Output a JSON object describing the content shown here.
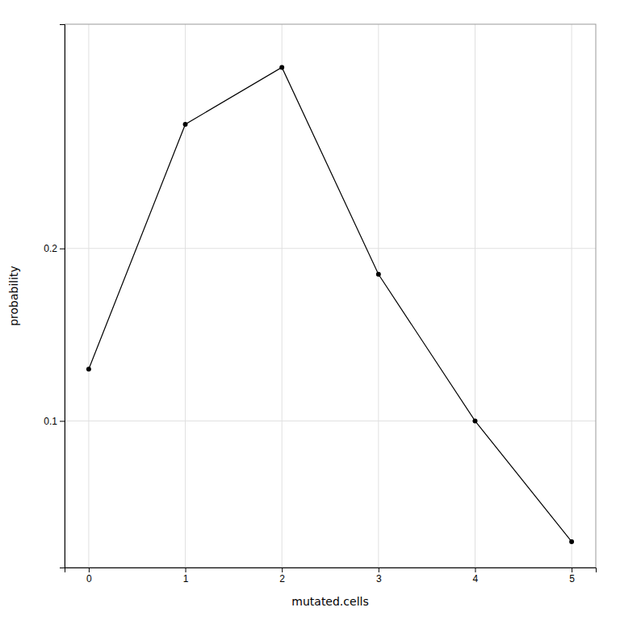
{
  "chart_data": {
    "type": "line",
    "x": [
      0,
      1,
      2,
      3,
      4,
      5
    ],
    "values": [
      0.13,
      0.272,
      0.305,
      0.185,
      0.1,
      0.03
    ],
    "xlabel": "mutated.cells",
    "ylabel": "probability",
    "color": "#000000",
    "marker": "circle",
    "xlim": [
      -0.25,
      5.25
    ],
    "ylim": [
      0.015,
      0.33
    ],
    "xticks": [
      0,
      1,
      2,
      3,
      4,
      5
    ],
    "yticks": [
      0.1,
      0.2
    ],
    "grid": true
  }
}
